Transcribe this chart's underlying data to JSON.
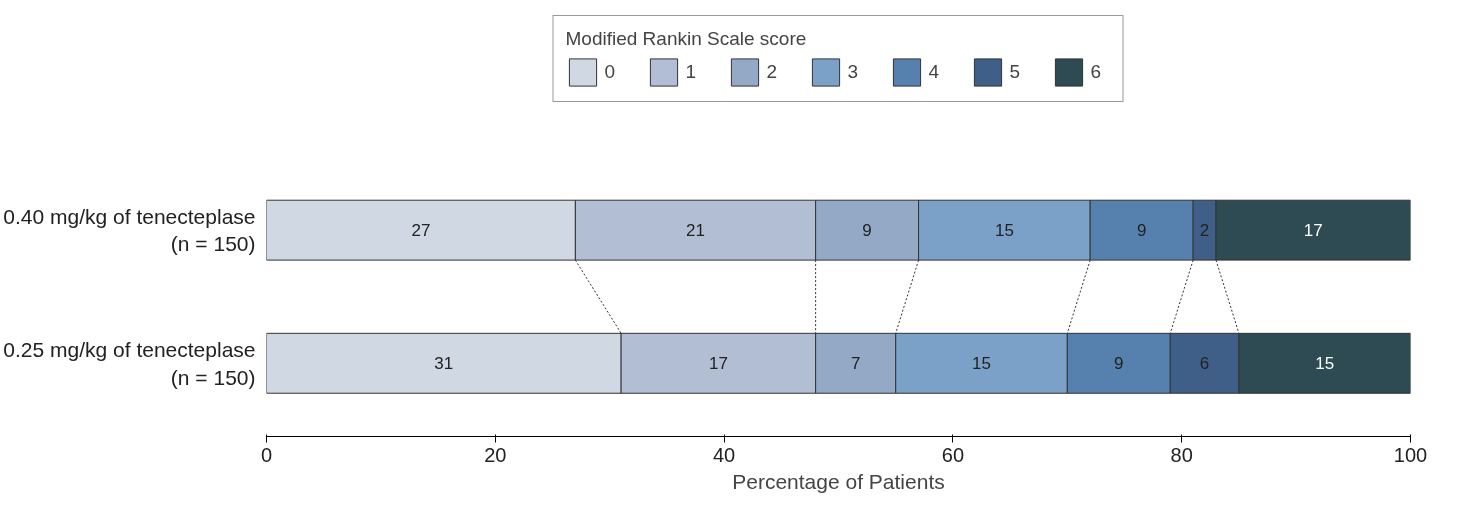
{
  "chart_data": {
    "type": "bar",
    "orientation": "horizontal",
    "stacked": true,
    "xlabel": "Percentage of Patients",
    "legend_title": "Modified Rankin Scale score",
    "legend": "top",
    "categories": [
      "0.40 mg/kg of tenecteplase (n = 150)",
      "0.25 mg/kg of tenecteplase (n = 150)"
    ],
    "series": [
      {
        "name": "0",
        "color": "#cfd8e3",
        "values": [
          27,
          31
        ]
      },
      {
        "name": "1",
        "color": "#b1bed4",
        "values": [
          21,
          17
        ]
      },
      {
        "name": "2",
        "color": "#93a9c6",
        "values": [
          9,
          7
        ]
      },
      {
        "name": "3",
        "color": "#7ba1c9",
        "values": [
          15,
          15
        ]
      },
      {
        "name": "4",
        "color": "#5681ae",
        "values": [
          9,
          9
        ]
      },
      {
        "name": "5",
        "color": "#3f5f89",
        "values": [
          2,
          6
        ]
      },
      {
        "name": "6",
        "color": "#2e4b53",
        "values": [
          17,
          15
        ]
      }
    ],
    "xlim": [
      0,
      100
    ],
    "xticks": [
      0,
      20,
      40,
      60,
      80,
      100
    ],
    "grid": false,
    "data_labels": true
  }
}
